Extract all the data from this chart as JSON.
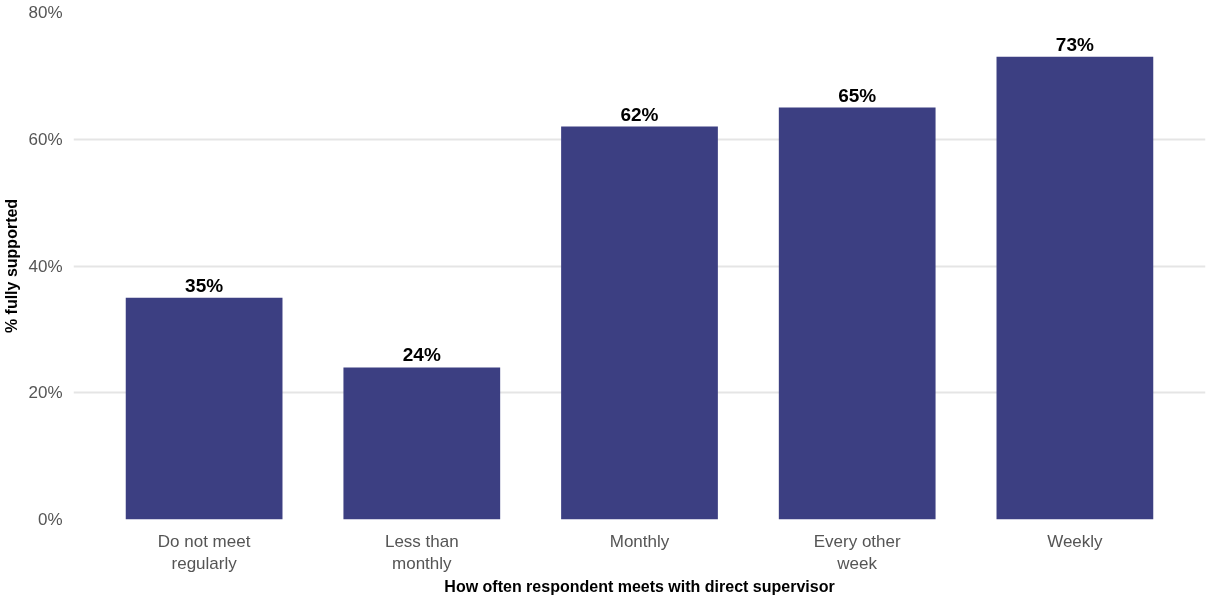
{
  "chart_data": {
    "type": "bar",
    "xlabel": "How often respondent meets with direct supervisor",
    "ylabel": "% fully supported",
    "categories": [
      "Do not meet regularly",
      "Less than monthly",
      "Monthly",
      "Every other week",
      "Weekly"
    ],
    "values": [
      35,
      24,
      62,
      65,
      73
    ],
    "value_labels": [
      "35%",
      "24%",
      "62%",
      "65%",
      "73%"
    ],
    "color": "#3c3f82",
    "ylim": [
      0,
      80
    ],
    "yticks": [
      {
        "value": 0,
        "label": "0%"
      },
      {
        "value": 20,
        "label": "20%"
      },
      {
        "value": 40,
        "label": "40%"
      },
      {
        "value": 60,
        "label": "60%"
      },
      {
        "value": 80,
        "label": "80%"
      }
    ],
    "grid": "y"
  }
}
